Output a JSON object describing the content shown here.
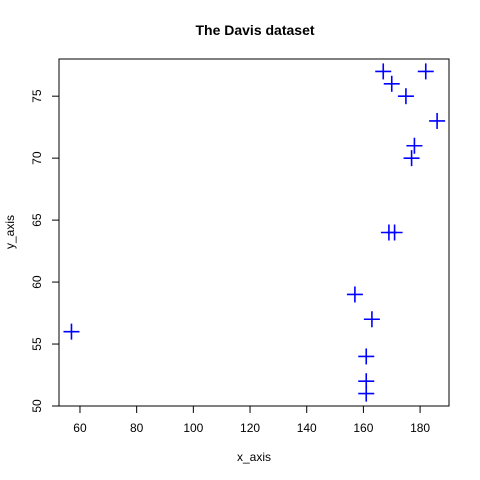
{
  "chart_data": {
    "type": "scatter",
    "title": "The Davis dataset",
    "xlabel": "x_axis",
    "ylabel": "y_axis",
    "xlim": [
      52.6,
      190.2
    ],
    "ylim": [
      50,
      78
    ],
    "xticks": [
      60,
      80,
      100,
      120,
      140,
      160,
      180
    ],
    "yticks": [
      50,
      55,
      60,
      65,
      70,
      75
    ],
    "marker": "plus",
    "color": "#0000ff",
    "grid": false,
    "legend": "none",
    "series": [
      {
        "x": [
          167,
          170,
          175,
          182,
          186,
          178,
          177,
          169,
          171,
          157,
          163,
          161,
          161,
          161,
          57
        ],
        "y": [
          77,
          76,
          75,
          77,
          73,
          71,
          70,
          64,
          64,
          59,
          57,
          54,
          52,
          51,
          56
        ]
      }
    ]
  }
}
